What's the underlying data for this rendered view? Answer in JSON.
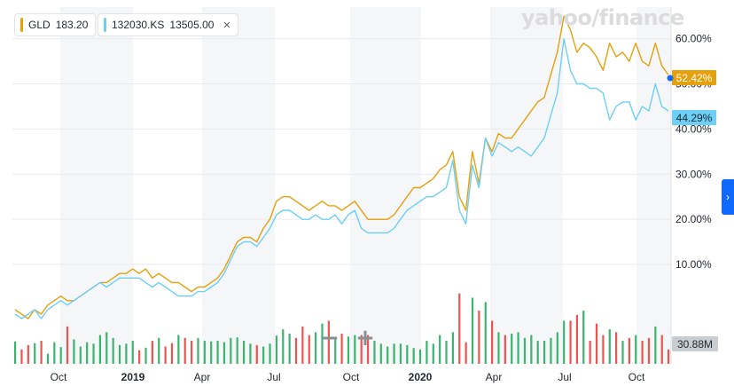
{
  "legend": [
    {
      "symbol": "GLD",
      "value": "183.20",
      "color": "#e5a00d",
      "removable": false
    },
    {
      "symbol": "132030.KS",
      "value": "13505.00",
      "color": "#6ccff6",
      "removable": true,
      "close_icon": "×"
    }
  ],
  "watermark": "yahoo/finance",
  "zoom": {
    "minus": "−",
    "plus": "+"
  },
  "side_tab": "›",
  "chart_data": {
    "type": "line",
    "x_tick_labels": [
      "Oct",
      "2019",
      "Apr",
      "Jul",
      "Oct",
      "2020",
      "Apr",
      "Jul",
      "Oct"
    ],
    "y_tick_labels": [
      "60.00%",
      "50.00%",
      "40.00%",
      "30.00%",
      "20.00%",
      "10.00%"
    ],
    "y_ticks": [
      60,
      50,
      40,
      30,
      20,
      10
    ],
    "ylim": [
      -12,
      67
    ],
    "grid": "horizontal",
    "colors": {
      "GLD": "#e5a00d",
      "132030.KS": "#6ccff6",
      "last_dot": "#0f69ff",
      "vol_up": "#3cb371",
      "vol_down": "#ef5350"
    },
    "series": [
      {
        "name": "GLD",
        "color": "#e5a00d",
        "last_label": "52.42%",
        "values": [
          0,
          -1,
          -2,
          0,
          -1,
          1,
          2,
          3,
          2,
          2,
          3,
          4,
          5,
          6,
          6,
          7,
          8,
          8,
          9,
          8,
          9,
          7,
          8,
          7,
          6,
          6,
          5,
          4,
          5,
          5,
          6,
          7,
          9,
          12,
          15,
          16,
          16,
          15,
          18,
          20,
          24,
          25,
          25,
          24,
          23,
          22,
          23,
          24,
          23,
          23,
          22,
          23,
          24,
          22,
          20,
          20,
          20,
          20,
          21,
          23,
          25,
          27,
          27,
          28,
          29,
          31,
          32,
          35,
          25,
          22,
          35,
          28,
          38,
          35,
          39,
          38,
          38,
          40,
          42,
          44,
          46,
          47,
          52,
          57,
          65,
          62,
          57,
          59,
          58,
          56,
          53,
          59,
          56,
          57,
          55,
          59,
          55,
          54,
          59,
          54,
          52
        ]
      },
      {
        "name": "132030.KS",
        "color": "#6ccff6",
        "last_label": "44.29%",
        "values": [
          -1,
          -2,
          -1,
          0,
          -2,
          0,
          1,
          2,
          1,
          2,
          3,
          4,
          5,
          6,
          5,
          6,
          7,
          7,
          7,
          7,
          6,
          5,
          6,
          5,
          4,
          3,
          3,
          3,
          4,
          4,
          5,
          6,
          8,
          11,
          14,
          15,
          15,
          14,
          16,
          18,
          21,
          22,
          22,
          21,
          20,
          20,
          21,
          20,
          20,
          21,
          19,
          21,
          22,
          18,
          17,
          17,
          17,
          17,
          18,
          20,
          22,
          23,
          24,
          25,
          25,
          26,
          27,
          33,
          22,
          19,
          32,
          27,
          38,
          34,
          37,
          36,
          35,
          36,
          35,
          34,
          36,
          38,
          43,
          48,
          60,
          53,
          50,
          50,
          49,
          49,
          48,
          42,
          45,
          46,
          46,
          42,
          45,
          44,
          50,
          45,
          44
        ]
      }
    ],
    "volume": {
      "label": "30.88M",
      "max": 30.88,
      "values": [
        7.8,
        5,
        6.5,
        7.2,
        8,
        3.5,
        7.5,
        5.8,
        13,
        8.5,
        6,
        7.5,
        7,
        10,
        11,
        9,
        6.5,
        7,
        8,
        4.7,
        5.6,
        8,
        9,
        6,
        7.2,
        10,
        9,
        8,
        9,
        8,
        7.8,
        8,
        7.5,
        9,
        9.2,
        8,
        7,
        6.5,
        6,
        7,
        9.8,
        12,
        10.5,
        9,
        13,
        10,
        11,
        14,
        15,
        9,
        10.5,
        9.5,
        10,
        10,
        10,
        8,
        7,
        6,
        7,
        7,
        6.5,
        5.5,
        5,
        8,
        7,
        10,
        8,
        11,
        24.5,
        7.5,
        23,
        18.5,
        21.5,
        15,
        11,
        10,
        10.5,
        11,
        9,
        10,
        8,
        8,
        9,
        11,
        15,
        15,
        17,
        18.5,
        8,
        14,
        10,
        12,
        11,
        8,
        9,
        10,
        8,
        9,
        13,
        10,
        5
      ]
    }
  }
}
